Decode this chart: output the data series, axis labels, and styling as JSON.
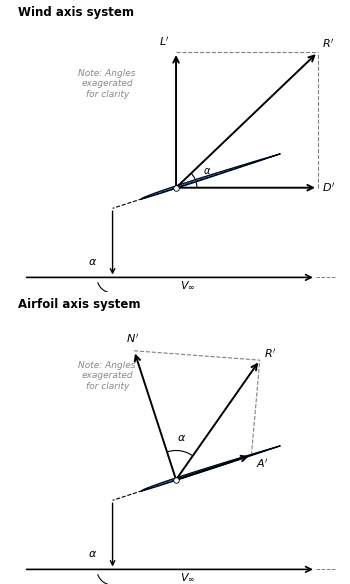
{
  "bg_color": "#ffffff",
  "title1": "Wind axis system",
  "title2": "Airfoil axis system",
  "note_text": "Note: Angles\nexagerated\nfor clarity",
  "airfoil_color": "#4472C4",
  "airfoil_edge_color": "#000000",
  "alpha_deg": 18,
  "V_inf_label": "$V_{\\infty}$"
}
